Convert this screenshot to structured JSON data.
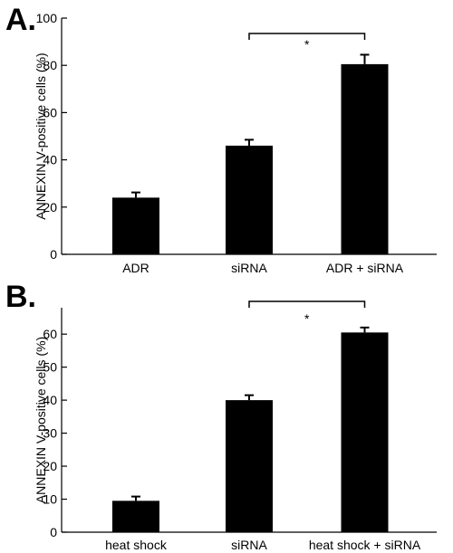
{
  "chart_data": [
    {
      "type": "bar",
      "panel_label": "A.",
      "categories": [
        "ADR",
        "siRNA",
        "ADR + siRNA"
      ],
      "values": [
        24,
        46,
        80.5
      ],
      "errors": [
        2.2,
        2.5,
        4.0
      ],
      "ylabel": "ANNEXIN V-positive cells (%)",
      "ylim": [
        0,
        100
      ],
      "yticks": [
        0,
        20,
        40,
        60,
        80,
        100
      ],
      "bar_color": "#000000",
      "grid": false,
      "significance": {
        "from": 1,
        "to": 2,
        "label": "*"
      }
    },
    {
      "type": "bar",
      "panel_label": "B.",
      "categories": [
        "heat shock",
        "siRNA",
        "heat shock + siRNA"
      ],
      "values": [
        9.5,
        40,
        60.5
      ],
      "errors": [
        1.3,
        1.5,
        1.5
      ],
      "ylabel": "ANNEXIN V-positive cells (%)",
      "ylim": [
        0,
        68
      ],
      "yticks": [
        0,
        10,
        20,
        30,
        40,
        50,
        60
      ],
      "bar_color": "#000000",
      "grid": false,
      "significance": {
        "from": 1,
        "to": 2,
        "label": "*"
      }
    }
  ]
}
